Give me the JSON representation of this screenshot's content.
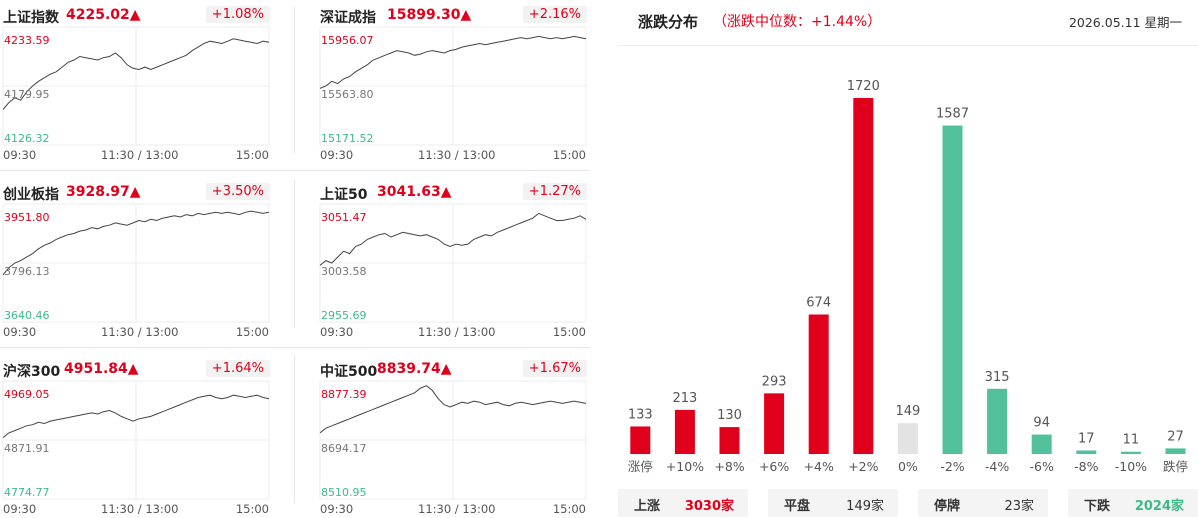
{
  "indices": [
    {
      "name": "上证指数",
      "price": "4225.02▲",
      "change": "+1.08%",
      "high": "4233.59",
      "mid": "4179.95",
      "low": "4126.32",
      "series": [
        0.3,
        0.36,
        0.4,
        0.38,
        0.45,
        0.5,
        0.54,
        0.57,
        0.6,
        0.62,
        0.66,
        0.7,
        0.72,
        0.75,
        0.74,
        0.73,
        0.72,
        0.74,
        0.75,
        0.78,
        0.74,
        0.68,
        0.65,
        0.64,
        0.66,
        0.64,
        0.66,
        0.68,
        0.7,
        0.72,
        0.74,
        0.76,
        0.8,
        0.83,
        0.86,
        0.88,
        0.87,
        0.86,
        0.88,
        0.9,
        0.89,
        0.88,
        0.87,
        0.86,
        0.88,
        0.87
      ]
    },
    {
      "name": "深证成指",
      "price": "15899.30▲",
      "change": "+2.16%",
      "high": "15956.07",
      "mid": "15563.80",
      "low": "15171.52",
      "series": [
        0.48,
        0.5,
        0.54,
        0.52,
        0.56,
        0.58,
        0.62,
        0.65,
        0.68,
        0.72,
        0.74,
        0.76,
        0.78,
        0.8,
        0.79,
        0.78,
        0.76,
        0.77,
        0.79,
        0.8,
        0.79,
        0.78,
        0.8,
        0.81,
        0.83,
        0.84,
        0.85,
        0.86,
        0.85,
        0.86,
        0.87,
        0.88,
        0.89,
        0.9,
        0.91,
        0.9,
        0.91,
        0.92,
        0.91,
        0.9,
        0.91,
        0.9,
        0.91,
        0.92,
        0.91,
        0.9
      ]
    },
    {
      "name": "创业板指",
      "price": "3928.97▲",
      "change": "+3.50%",
      "high": "3951.80",
      "mid": "3796.13",
      "low": "3640.46",
      "series": [
        0.4,
        0.46,
        0.5,
        0.52,
        0.55,
        0.58,
        0.62,
        0.65,
        0.67,
        0.7,
        0.72,
        0.74,
        0.75,
        0.77,
        0.78,
        0.8,
        0.79,
        0.81,
        0.82,
        0.84,
        0.83,
        0.82,
        0.84,
        0.86,
        0.85,
        0.87,
        0.86,
        0.88,
        0.89,
        0.9,
        0.89,
        0.91,
        0.9,
        0.92,
        0.91,
        0.92,
        0.93,
        0.92,
        0.93,
        0.92,
        0.91,
        0.93,
        0.94,
        0.93,
        0.92,
        0.93
      ]
    },
    {
      "name": "上证50",
      "price": "3041.63▲",
      "change": "+1.27%",
      "high": "3051.47",
      "mid": "3003.58",
      "low": "2955.69",
      "series": [
        0.48,
        0.52,
        0.5,
        0.55,
        0.6,
        0.58,
        0.64,
        0.66,
        0.7,
        0.72,
        0.74,
        0.75,
        0.72,
        0.74,
        0.76,
        0.75,
        0.74,
        0.73,
        0.74,
        0.72,
        0.7,
        0.66,
        0.64,
        0.66,
        0.65,
        0.66,
        0.7,
        0.72,
        0.74,
        0.73,
        0.76,
        0.78,
        0.8,
        0.82,
        0.84,
        0.86,
        0.88,
        0.92,
        0.9,
        0.88,
        0.86,
        0.86,
        0.87,
        0.88,
        0.9,
        0.87
      ]
    },
    {
      "name": "沪深300",
      "price": "4951.84▲",
      "change": "+1.64%",
      "high": "4969.05",
      "mid": "4871.91",
      "low": "4774.77",
      "series": [
        0.52,
        0.56,
        0.58,
        0.6,
        0.62,
        0.63,
        0.65,
        0.64,
        0.66,
        0.67,
        0.68,
        0.69,
        0.7,
        0.71,
        0.72,
        0.73,
        0.72,
        0.74,
        0.75,
        0.73,
        0.7,
        0.68,
        0.66,
        0.68,
        0.69,
        0.7,
        0.72,
        0.74,
        0.76,
        0.78,
        0.8,
        0.82,
        0.84,
        0.86,
        0.87,
        0.88,
        0.86,
        0.85,
        0.86,
        0.88,
        0.87,
        0.86,
        0.87,
        0.88,
        0.86,
        0.85
      ]
    },
    {
      "name": "中证500",
      "price": "8839.74▲",
      "change": "+1.67%",
      "high": "8877.39",
      "mid": "8694.17",
      "low": "8510.95",
      "series": [
        0.56,
        0.6,
        0.62,
        0.64,
        0.66,
        0.68,
        0.7,
        0.72,
        0.74,
        0.76,
        0.78,
        0.8,
        0.82,
        0.84,
        0.86,
        0.88,
        0.9,
        0.94,
        0.96,
        0.92,
        0.85,
        0.8,
        0.78,
        0.8,
        0.82,
        0.81,
        0.83,
        0.82,
        0.8,
        0.81,
        0.82,
        0.8,
        0.79,
        0.81,
        0.82,
        0.81,
        0.8,
        0.81,
        0.82,
        0.83,
        0.82,
        0.81,
        0.82,
        0.83,
        0.82,
        0.81
      ]
    }
  ],
  "time_axis": {
    "start": "09:30",
    "mid": "11:30 / 13:00",
    "end": "15:00"
  },
  "distribution": {
    "title": "涨跌分布",
    "median_text": "（涨跌中位数：+1.44%）",
    "date": "2026.05.11 星期一",
    "colors": {
      "up": "#e0001b",
      "flat": "#e3e3e3",
      "down": "#52c09b"
    }
  },
  "chart_data": {
    "type": "bar",
    "categories": [
      "涨停",
      "+10%",
      "+8%",
      "+6%",
      "+4%",
      "+2%",
      "0%",
      "-2%",
      "-4%",
      "-6%",
      "-8%",
      "-10%",
      "跌停"
    ],
    "values": [
      133,
      213,
      130,
      293,
      674,
      1720,
      149,
      1587,
      315,
      94,
      17,
      11,
      27
    ],
    "value_labels": [
      "133",
      "213",
      "130",
      "293",
      "674",
      "1720",
      "149",
      "1587",
      "315",
      "94",
      "17",
      "11",
      "27"
    ],
    "direction": [
      "up",
      "up",
      "up",
      "up",
      "up",
      "up",
      "flat",
      "down",
      "down",
      "down",
      "down",
      "down",
      "down"
    ],
    "ylim": [
      0,
      1720
    ]
  },
  "summary": [
    {
      "label": "上涨",
      "value": "3030家",
      "color": "#e0001b"
    },
    {
      "label": "平盘",
      "value": "149家",
      "color": "#333333"
    },
    {
      "label": "停牌",
      "value": "23家",
      "color": "#333333"
    },
    {
      "label": "下跌",
      "value": "2024家",
      "color": "#3fb98a"
    }
  ]
}
